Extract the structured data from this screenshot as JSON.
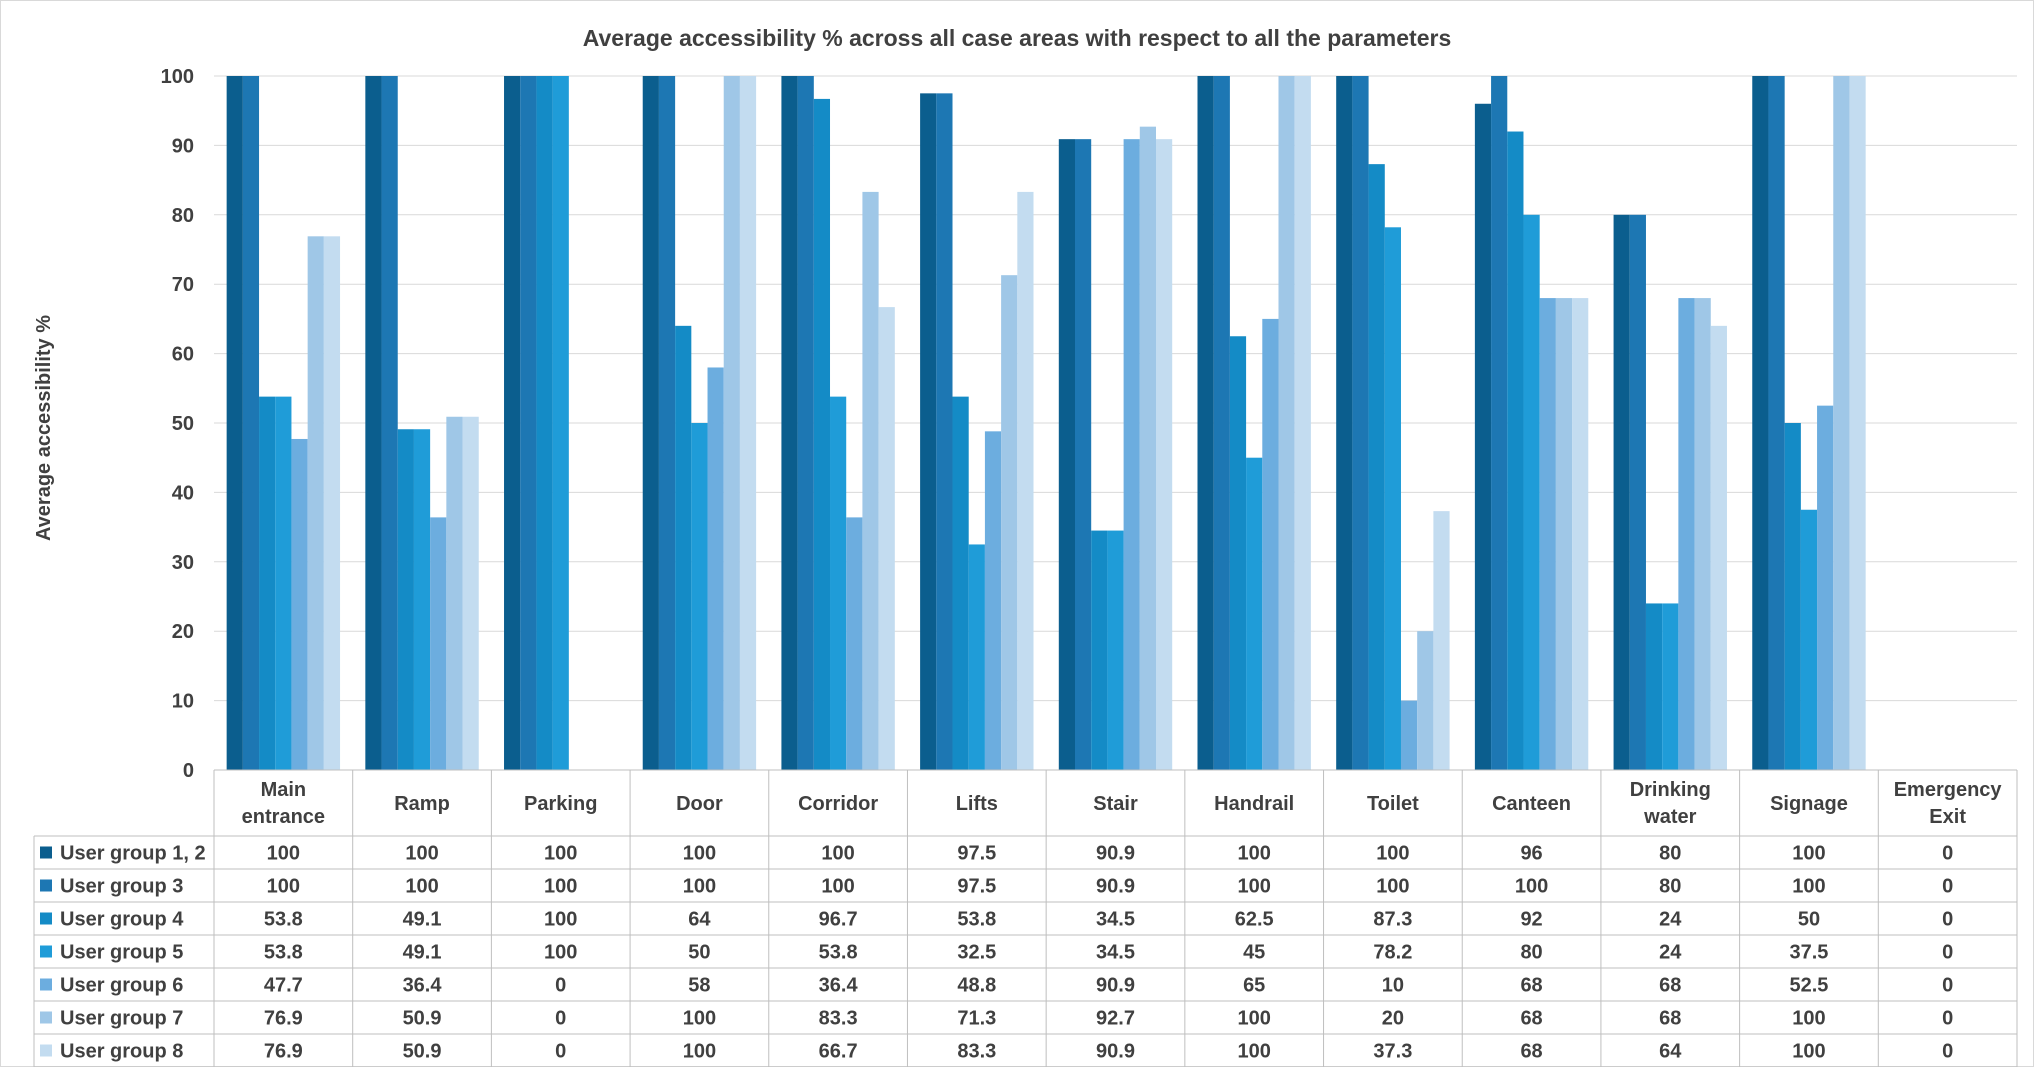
{
  "chart_data": {
    "type": "bar",
    "title": "Average accessibility % across all case areas with respect to all the parameters",
    "ylabel": "Average accessibility %",
    "xlabel": "",
    "ylim": [
      0,
      100
    ],
    "yticks": [
      0,
      10,
      20,
      30,
      40,
      50,
      60,
      70,
      80,
      90,
      100
    ],
    "grid": true,
    "legend": "data-table",
    "categories": [
      "Main entrance",
      "Ramp",
      "Parking",
      "Door",
      "Corridor",
      "Lifts",
      "Stair",
      "Handrail",
      "Toilet",
      "Canteen",
      "Drinking water",
      "Signage",
      "Emergency Exit"
    ],
    "series": [
      {
        "name": "User group 1, 2",
        "color": "#0b5e8e",
        "values": [
          100,
          100,
          100,
          100,
          100,
          97.5,
          90.9,
          100,
          100,
          96,
          80,
          100,
          0
        ]
      },
      {
        "name": "User group 3",
        "color": "#1d77b3",
        "values": [
          100,
          100,
          100,
          100,
          100,
          97.5,
          90.9,
          100,
          100,
          100,
          80,
          100,
          0
        ]
      },
      {
        "name": "User group 4",
        "color": "#148bc6",
        "values": [
          53.8,
          49.1,
          100,
          64,
          96.7,
          53.8,
          34.5,
          62.5,
          87.3,
          92,
          24,
          50,
          0
        ]
      },
      {
        "name": "User group 5",
        "color": "#1f9cd8",
        "values": [
          53.8,
          49.1,
          100,
          50,
          53.8,
          32.5,
          34.5,
          45,
          78.2,
          80,
          24,
          37.5,
          0
        ]
      },
      {
        "name": "User group 6",
        "color": "#6caddf",
        "values": [
          47.7,
          36.4,
          0,
          58,
          36.4,
          48.8,
          90.9,
          65,
          10,
          68,
          68,
          52.5,
          0
        ]
      },
      {
        "name": "User group 7",
        "color": "#9fc7e7",
        "values": [
          76.9,
          50.9,
          0,
          100,
          83.3,
          71.3,
          92.7,
          100,
          20,
          68,
          68,
          100,
          0
        ]
      },
      {
        "name": "User group 8",
        "color": "#c3dcf0",
        "values": [
          76.9,
          50.9,
          0,
          100,
          66.7,
          83.3,
          90.9,
          100,
          37.3,
          68,
          64,
          100,
          0
        ]
      }
    ]
  }
}
